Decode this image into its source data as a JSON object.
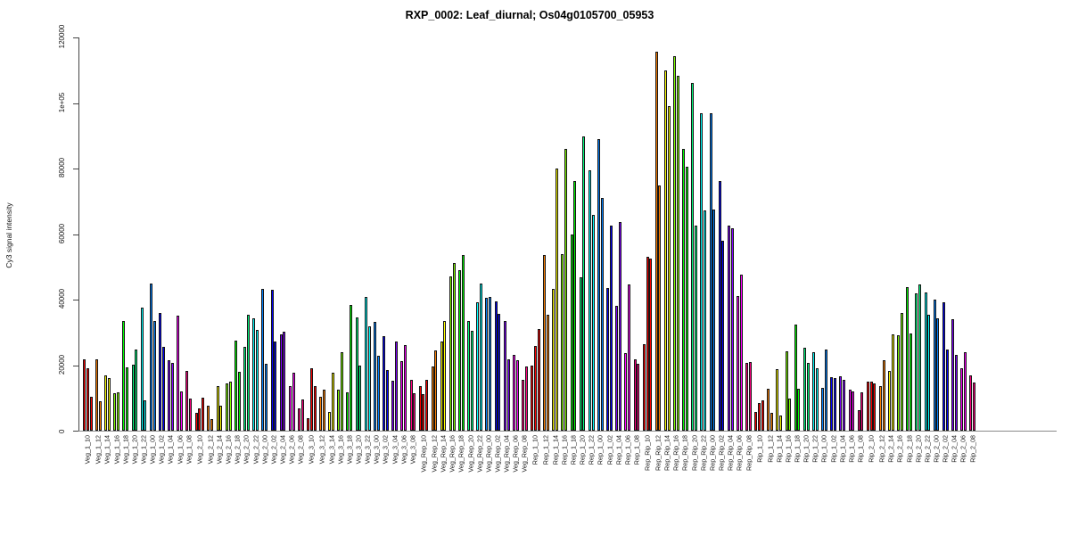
{
  "chart_data": {
    "type": "bar",
    "title": "RXP_0002: Leaf_diurnal; Os04g0105700_05953",
    "ylabel": "Cy3 signal intensity",
    "xlabel": "",
    "ylim": [
      0,
      120000
    ],
    "grid": false,
    "legend": "none",
    "y_ticks": [
      {
        "value": 0,
        "label": "0"
      },
      {
        "value": 20000,
        "label": "20000"
      },
      {
        "value": 40000,
        "label": "40000"
      },
      {
        "value": 60000,
        "label": "60000"
      },
      {
        "value": 80000,
        "label": "80000"
      },
      {
        "value": 100000,
        "label": "1e+05"
      },
      {
        "value": 120000,
        "label": "120000"
      }
    ],
    "palette": [
      "#FF0000",
      "#FF8000",
      "#FFFF00",
      "#80FF00",
      "#00FF00",
      "#00FF80",
      "#00FFFF",
      "#0080FF",
      "#0000FF",
      "#8000FF",
      "#FF00FF",
      "#FF0080"
    ],
    "stages": [
      {
        "name": "Veg_1",
        "points": [
          {
            "label": "Veg_1_10",
            "values": [
              21800,
              19000,
              10300
            ]
          },
          {
            "label": "Veg_1_12",
            "values": [
              21900,
              9000
            ]
          },
          {
            "label": "Veg_1_14",
            "values": [
              17000,
              16000
            ]
          },
          {
            "label": "Veg_1_16",
            "values": [
              11500,
              11700
            ]
          },
          {
            "label": "Veg_1_18",
            "values": [
              33600,
              19200
            ]
          },
          {
            "label": "Veg_1_20",
            "values": [
              20200,
              24800
            ]
          },
          {
            "label": "Veg_1_22",
            "values": [
              37500,
              9300
            ]
          },
          {
            "label": "Veg_1_00",
            "values": [
              44900,
              33400
            ]
          },
          {
            "label": "Veg_1_02",
            "values": [
              36000,
              25500
            ]
          },
          {
            "label": "Veg_1_04",
            "values": [
              21600,
              20600
            ]
          },
          {
            "label": "Veg_1_06",
            "values": [
              35200,
              12100
            ]
          },
          {
            "label": "Veg_1_08",
            "values": [
              18200,
              9800
            ]
          }
        ]
      },
      {
        "name": "Veg_2",
        "points": [
          {
            "label": "Veg_2_10",
            "values": [
              5400,
              6900,
              10200
            ]
          },
          {
            "label": "Veg_2_12",
            "values": [
              7600,
              3500
            ]
          },
          {
            "label": "Veg_2_14",
            "values": [
              13500,
              7600
            ]
          },
          {
            "label": "Veg_2_16",
            "values": [
              14400,
              14900
            ]
          },
          {
            "label": "Veg_2_18",
            "values": [
              27400,
              18000
            ]
          },
          {
            "label": "Veg_2_20",
            "values": [
              25600,
              35400
            ]
          },
          {
            "label": "Veg_2_22",
            "values": [
              34300,
              30700
            ]
          },
          {
            "label": "Veg_2_00",
            "values": [
              43400,
              20400
            ]
          },
          {
            "label": "Veg_2_02",
            "values": [
              43000,
              27300
            ]
          },
          {
            "label": "Veg_2_04",
            "values": [
              29500,
              30100
            ]
          },
          {
            "label": "Veg_2_06",
            "values": [
              13700,
              17600
            ]
          },
          {
            "label": "Veg_2_08",
            "values": [
              6700,
              9400
            ]
          }
        ]
      },
      {
        "name": "Veg_3",
        "points": [
          {
            "label": "Veg_3_10",
            "values": [
              3700,
              19000,
              13500
            ]
          },
          {
            "label": "Veg_3_12",
            "values": [
              10300,
              12600
            ]
          },
          {
            "label": "Veg_3_14",
            "values": [
              5800,
              17600
            ]
          },
          {
            "label": "Veg_3_16",
            "values": [
              12600,
              23900
            ]
          },
          {
            "label": "Veg_3_18",
            "values": [
              11700,
              38400
            ]
          },
          {
            "label": "Veg_3_20",
            "values": [
              34500,
              19900
            ]
          },
          {
            "label": "Veg_3_22",
            "values": [
              40900,
              31800
            ]
          },
          {
            "label": "Veg_3_00",
            "values": [
              33200,
              22900
            ]
          },
          {
            "label": "Veg_3_02",
            "values": [
              28900,
              18500
            ]
          },
          {
            "label": "Veg_3_04",
            "values": [
              15300,
              27300
            ]
          },
          {
            "label": "Veg_3_06",
            "values": [
              21200,
              26200
            ]
          },
          {
            "label": "Veg_3_08",
            "values": [
              15500,
              11400
            ]
          }
        ]
      },
      {
        "name": "Veg_Rep",
        "points": [
          {
            "label": "Veg_Rep_10",
            "values": [
              13500,
              11200,
              15600
            ]
          },
          {
            "label": "Veg_Rep_12",
            "values": [
              19700,
              24400
            ]
          },
          {
            "label": "Veg_Rep_14",
            "values": [
              27300,
              33600
            ]
          },
          {
            "label": "Veg_Rep_16",
            "values": [
              47200,
              51100
            ]
          },
          {
            "label": "Veg_Rep_18",
            "values": [
              49100,
              53600
            ]
          },
          {
            "label": "Veg_Rep_20",
            "values": [
              33600,
              30600
            ]
          },
          {
            "label": "Veg_Rep_22",
            "values": [
              39100,
              44800
            ]
          },
          {
            "label": "Veg_Rep_00",
            "values": [
              40500,
              40700
            ]
          },
          {
            "label": "Veg_Rep_02",
            "values": [
              39400,
              35700
            ]
          },
          {
            "label": "Veg_Rep_04",
            "values": [
              33500,
              21900
            ]
          },
          {
            "label": "Veg_Rep_06",
            "values": [
              23000,
              21500
            ]
          },
          {
            "label": "Veg_Rep_08",
            "values": [
              15500,
              19600
            ]
          }
        ]
      },
      {
        "name": "Rep_1",
        "points": [
          {
            "label": "Rep_1_10",
            "values": [
              19900,
              25800,
              30900
            ]
          },
          {
            "label": "Rep_1_12",
            "values": [
              53700,
              35500
            ]
          },
          {
            "label": "Rep_1_14",
            "values": [
              43400,
              80000
            ]
          },
          {
            "label": "Rep_1_16",
            "values": [
              54000,
              85900
            ]
          },
          {
            "label": "Rep_1_18",
            "values": [
              60000,
              76300
            ]
          },
          {
            "label": "Rep_1_20",
            "values": [
              46900,
              89700
            ]
          },
          {
            "label": "Rep_1_22",
            "values": [
              79400,
              65900
            ]
          },
          {
            "label": "Rep_1_00",
            "values": [
              89000,
              71100
            ]
          },
          {
            "label": "Rep_1_02",
            "values": [
              43600,
              62500
            ]
          },
          {
            "label": "Rep_1_04",
            "values": [
              38000,
              63800
            ]
          },
          {
            "label": "Rep_1_06",
            "values": [
              23700,
              44600
            ]
          },
          {
            "label": "Rep_1_08",
            "values": [
              21900,
              20300
            ]
          }
        ]
      },
      {
        "name": "Rep_Rip",
        "points": [
          {
            "label": "Rep_Rip_10",
            "values": [
              26300,
              53000,
              52500
            ]
          },
          {
            "label": "Rep_Rip_12",
            "values": [
              115600,
              74900
            ]
          },
          {
            "label": "Rep_Rip_14",
            "values": [
              109900,
              99000
            ]
          },
          {
            "label": "Rep_Rip_16",
            "values": [
              114400,
              108300
            ]
          },
          {
            "label": "Rep_Rip_18",
            "values": [
              85900,
              80600
            ]
          },
          {
            "label": "Rep_Rip_20",
            "values": [
              106100,
              62600
            ]
          },
          {
            "label": "Rep_Rip_22",
            "values": [
              96900,
              67200
            ]
          },
          {
            "label": "Rep_Rip_00",
            "values": [
              96800,
              67500
            ]
          },
          {
            "label": "Rep_Rip_02",
            "values": [
              76200,
              58000
            ]
          },
          {
            "label": "Rep_Rip_04",
            "values": [
              62500,
              61800
            ]
          },
          {
            "label": "Rep_Rip_06",
            "values": [
              41000,
              47600
            ]
          },
          {
            "label": "Rep_Rip_08",
            "values": [
              20800,
              21000
            ]
          }
        ]
      },
      {
        "name": "Rip_1",
        "points": [
          {
            "label": "Rip_1_10",
            "values": [
              5800,
              8300,
              9200
            ]
          },
          {
            "label": "Rip_1_12",
            "values": [
              12900,
              5400
            ]
          },
          {
            "label": "Rip_1_14",
            "values": [
              18800,
              4600
            ]
          },
          {
            "label": "Rip_1_16",
            "values": [
              24100,
              9900
            ]
          },
          {
            "label": "Rip_1_18",
            "values": [
              32400,
              12900
            ]
          },
          {
            "label": "Rip_1_20",
            "values": [
              25300,
              20600
            ]
          },
          {
            "label": "Rip_1_22",
            "values": [
              23900,
              19000
            ]
          },
          {
            "label": "Rip_1_00",
            "values": [
              13100,
              24800
            ]
          },
          {
            "label": "Rip_1_02",
            "values": [
              16400,
              16100
            ]
          },
          {
            "label": "Rip_1_04",
            "values": [
              16700,
              15500
            ]
          },
          {
            "label": "Rip_1_06",
            "values": [
              12400,
              11900
            ]
          },
          {
            "label": "Rip_1_08",
            "values": [
              6300,
              11700
            ]
          }
        ]
      },
      {
        "name": "Rip_2",
        "points": [
          {
            "label": "Rip_2_10",
            "values": [
              15100,
              14900,
              14400
            ]
          },
          {
            "label": "Rip_2_12",
            "values": [
              13700,
              21500
            ]
          },
          {
            "label": "Rip_2_14",
            "values": [
              18200,
              29400
            ]
          },
          {
            "label": "Rip_2_16",
            "values": [
              29100,
              36000
            ]
          },
          {
            "label": "Rip_2_18",
            "values": [
              43700,
              29700
            ]
          },
          {
            "label": "Rip_2_20",
            "values": [
              41900,
              44500
            ]
          },
          {
            "label": "Rip_2_22",
            "values": [
              42100,
              35300
            ]
          },
          {
            "label": "Rip_2_00",
            "values": [
              40100,
              34200
            ]
          },
          {
            "label": "Rip_2_02",
            "values": [
              39100,
              24800
            ]
          },
          {
            "label": "Rip_2_04",
            "values": [
              33900,
              23000
            ]
          },
          {
            "label": "Rip_2_06",
            "values": [
              19000,
              23900
            ]
          },
          {
            "label": "Rip_2_08",
            "values": [
              17000,
              14600
            ]
          }
        ]
      }
    ]
  }
}
